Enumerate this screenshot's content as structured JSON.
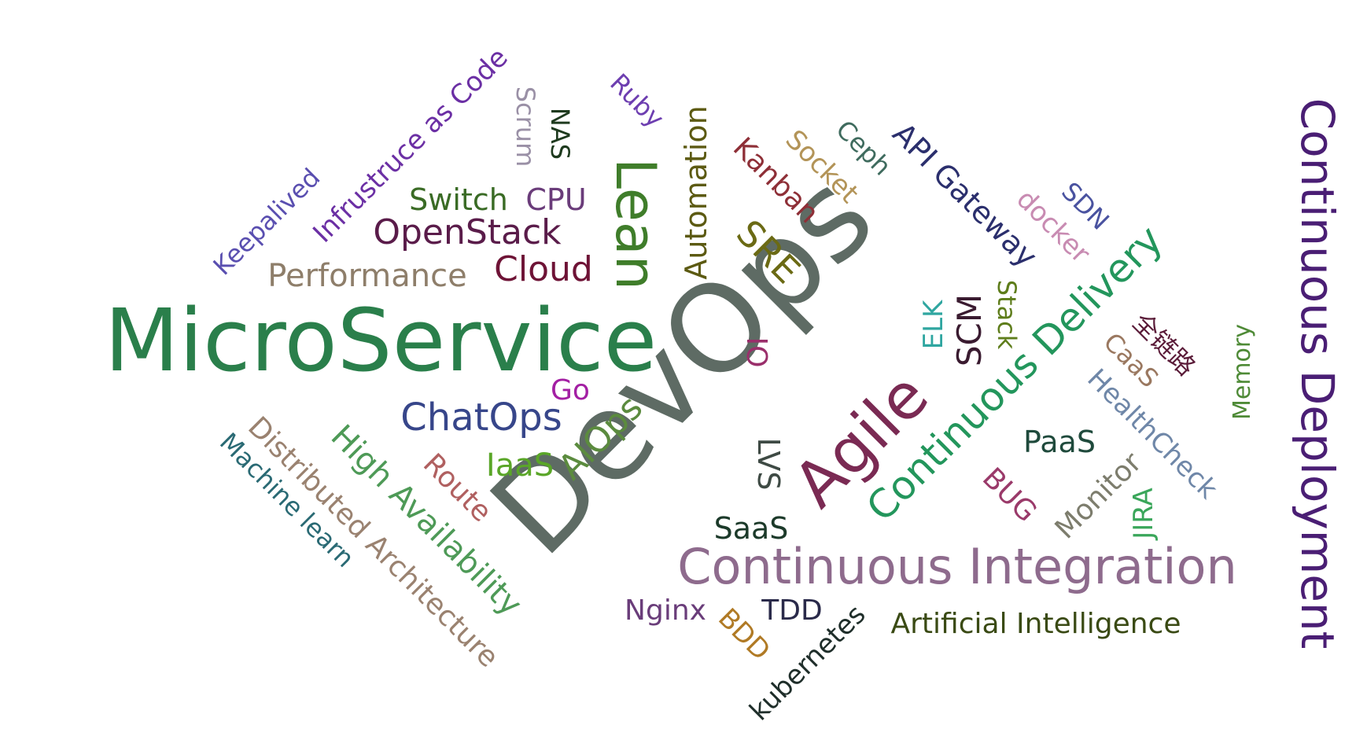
{
  "words": [
    {
      "text": "DevOps",
      "color": "#5e6b64"
    },
    {
      "text": "MicroService",
      "color": "#2a7f4b"
    },
    {
      "text": "Continuous Integration",
      "color": "#8e6b8d"
    },
    {
      "text": "Continuous Deployment",
      "color": "#4a1e74"
    },
    {
      "text": "Continuous Delivery",
      "color": "#23965c"
    },
    {
      "text": "Agile",
      "color": "#7a2a53"
    },
    {
      "text": "Lean",
      "color": "#3f7d2a"
    },
    {
      "text": "Automation",
      "color": "#5c5a12"
    },
    {
      "text": "API Gateway",
      "color": "#2b2f6d"
    },
    {
      "text": "Infrustruce as Code",
      "color": "#6b2fa4"
    },
    {
      "text": "Keepalived",
      "color": "#5a4fb0"
    },
    {
      "text": "OpenStack",
      "color": "#5a1c4a"
    },
    {
      "text": "Performance",
      "color": "#8e7e6a"
    },
    {
      "text": "Cloud",
      "color": "#6e1336"
    },
    {
      "text": "Switch",
      "color": "#3a6b25"
    },
    {
      "text": "CPU",
      "color": "#6a3c7a"
    },
    {
      "text": "Scrum",
      "color": "#9a90a6"
    },
    {
      "text": "NAS",
      "color": "#1e3a1e"
    },
    {
      "text": "Ruby",
      "color": "#6d3eb0"
    },
    {
      "text": "Kanban",
      "color": "#8e2f37"
    },
    {
      "text": "Socket",
      "color": "#b39458"
    },
    {
      "text": "Ceph",
      "color": "#3f6b5e"
    },
    {
      "text": "SRE",
      "color": "#6b6a14"
    },
    {
      "text": "docker",
      "color": "#c88bb2"
    },
    {
      "text": "SDN",
      "color": "#4a53a0"
    },
    {
      "text": "ELK",
      "color": "#2fa6a0"
    },
    {
      "text": "SCM",
      "color": "#3a1b30"
    },
    {
      "text": "Stack",
      "color": "#5e7d1b"
    },
    {
      "text": "全链路",
      "color": "#5a1b38"
    },
    {
      "text": "CaaS",
      "color": "#9a7860"
    },
    {
      "text": "HealthCheck",
      "color": "#6f87a8"
    },
    {
      "text": "Memory",
      "color": "#4e8a36"
    },
    {
      "text": "IO",
      "color": "#9a2f6b"
    },
    {
      "text": "Go",
      "color": "#a31fa3"
    },
    {
      "text": "ChatOps",
      "color": "#37468a"
    },
    {
      "text": "High Availability",
      "color": "#4e9a57"
    },
    {
      "text": "Distributed Architecture",
      "color": "#9a8270"
    },
    {
      "text": "Machine learn",
      "color": "#2a6a74"
    },
    {
      "text": "Route",
      "color": "#b06060"
    },
    {
      "text": "IaaS",
      "color": "#5aa628"
    },
    {
      "text": "AIOps",
      "color": "#5b8b3e"
    },
    {
      "text": "LVS",
      "color": "#3e4a44"
    },
    {
      "text": "SaaS",
      "color": "#1c3a2a"
    },
    {
      "text": "PaaS",
      "color": "#1f4a3c"
    },
    {
      "text": "BUG",
      "color": "#9a3a6a"
    },
    {
      "text": "Monitor",
      "color": "#7d7d6d"
    },
    {
      "text": "JIRA",
      "color": "#3aa65a"
    },
    {
      "text": "Nginx",
      "color": "#6a3d7a"
    },
    {
      "text": "BDD",
      "color": "#b07a25"
    },
    {
      "text": "TDD",
      "color": "#2a2a4a"
    },
    {
      "text": "Artificial Intelligence",
      "color": "#3a4a14"
    },
    {
      "text": "kubernetes",
      "color": "#1f2e2a"
    }
  ]
}
